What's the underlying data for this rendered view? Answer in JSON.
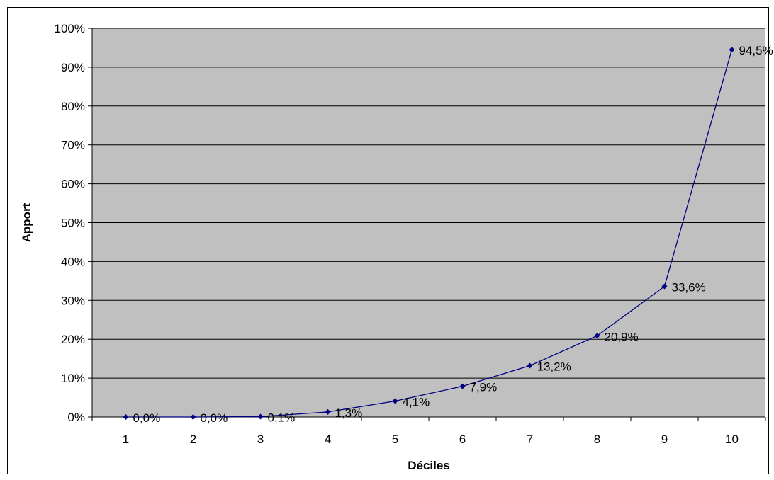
{
  "chart_data": {
    "type": "line",
    "title": "",
    "xlabel": "Déciles",
    "ylabel": "Apport",
    "categories": [
      "1",
      "2",
      "3",
      "4",
      "5",
      "6",
      "7",
      "8",
      "9",
      "10"
    ],
    "series": [
      {
        "values": [
          0.0,
          0.0,
          0.1,
          1.3,
          4.1,
          7.9,
          13.2,
          20.9,
          33.6,
          94.5
        ],
        "labels": [
          "0,0%",
          "0,0%",
          "0,1%",
          "1,3%",
          "4,1%",
          "7,9%",
          "13,2%",
          "20,9%",
          "33,6%",
          "94,5%"
        ],
        "color": "#000080"
      }
    ],
    "ylim": [
      0,
      100
    ],
    "y_ticks": [
      "0%",
      "10%",
      "20%",
      "30%",
      "40%",
      "50%",
      "60%",
      "70%",
      "80%",
      "90%",
      "100%"
    ],
    "grid": true,
    "plot_background": "#c0c0c0",
    "gridline_color": "#000000",
    "legend": "none"
  }
}
